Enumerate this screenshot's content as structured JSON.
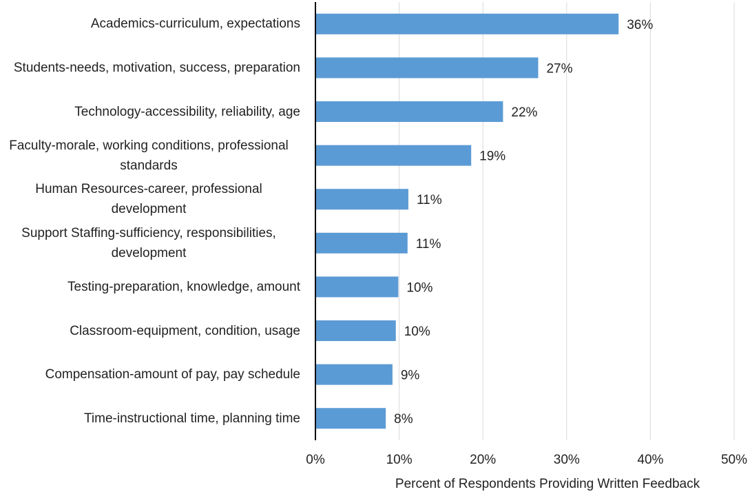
{
  "chart_data": {
    "type": "barh",
    "xlabel": "Percent of Respondents Providing Written Feedback",
    "categories": [
      "Academics-curriculum, expectations",
      "Students-needs, motivation, success, preparation",
      "Technology-accessibility, reliability, age",
      "Faculty-morale, working conditions, professional standards",
      "Human Resources-career, professional development",
      "Support Staffing-sufficiency, responsibilities, development",
      "Testing-preparation, knowledge, amount",
      "Classroom-equipment, condition, usage",
      "Compensation-amount of pay, pay schedule",
      "Time-instructional time, planning time"
    ],
    "values": [
      36.2,
      26.6,
      22.4,
      18.6,
      11.1,
      11.0,
      9.9,
      9.6,
      9.2,
      8.4
    ],
    "value_labels": [
      "36%",
      "27%",
      "22%",
      "19%",
      "11%",
      "11%",
      "10%",
      "10%",
      "9%",
      "8%"
    ],
    "color": "#5b9bd5",
    "xlim": [
      0,
      50
    ],
    "xticks": [
      {
        "value": 0,
        "label": "0%"
      },
      {
        "value": 10,
        "label": "10%"
      },
      {
        "value": 20,
        "label": "20%"
      },
      {
        "value": 30,
        "label": "30%"
      },
      {
        "value": 40,
        "label": "40%"
      },
      {
        "value": 50,
        "label": "50%"
      }
    ],
    "grid": true
  }
}
